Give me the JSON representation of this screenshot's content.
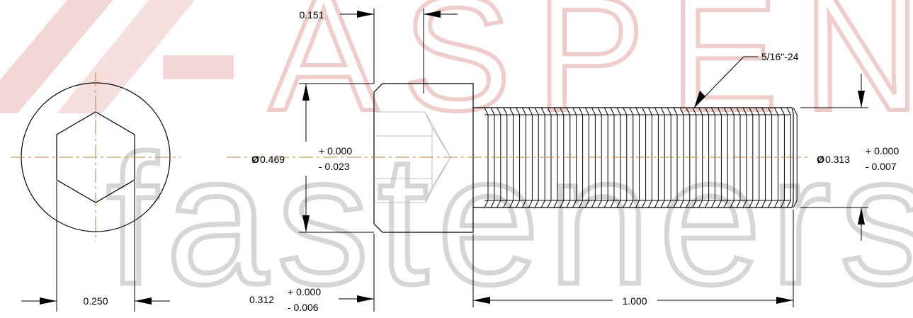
{
  "watermark": {
    "brand_top": "ASPEN",
    "brand_bottom": "fasteners",
    "logo_color": "#e8b8b5",
    "text_color": "#d9d9d9"
  },
  "colors": {
    "line": "#000000",
    "center_line": "#c8843c",
    "hidden_line": "#bdbdbd"
  },
  "dimensions": {
    "head_height": "0.151",
    "head_diameter": {
      "prefix": "Ø",
      "nominal": "0.469",
      "plus": "+ 0.000",
      "minus": "- 0.023"
    },
    "head_length": {
      "nominal": "0.312",
      "plus": "+ 0.000",
      "minus": "- 0.006"
    },
    "thread_callout": "5/16\"-24",
    "thread_diameter": {
      "prefix": "Ø",
      "nominal": "0.313",
      "plus": "+ 0.000",
      "minus": "- 0.007"
    },
    "shank_length": "1.000",
    "hex_socket_size": "0.250"
  }
}
